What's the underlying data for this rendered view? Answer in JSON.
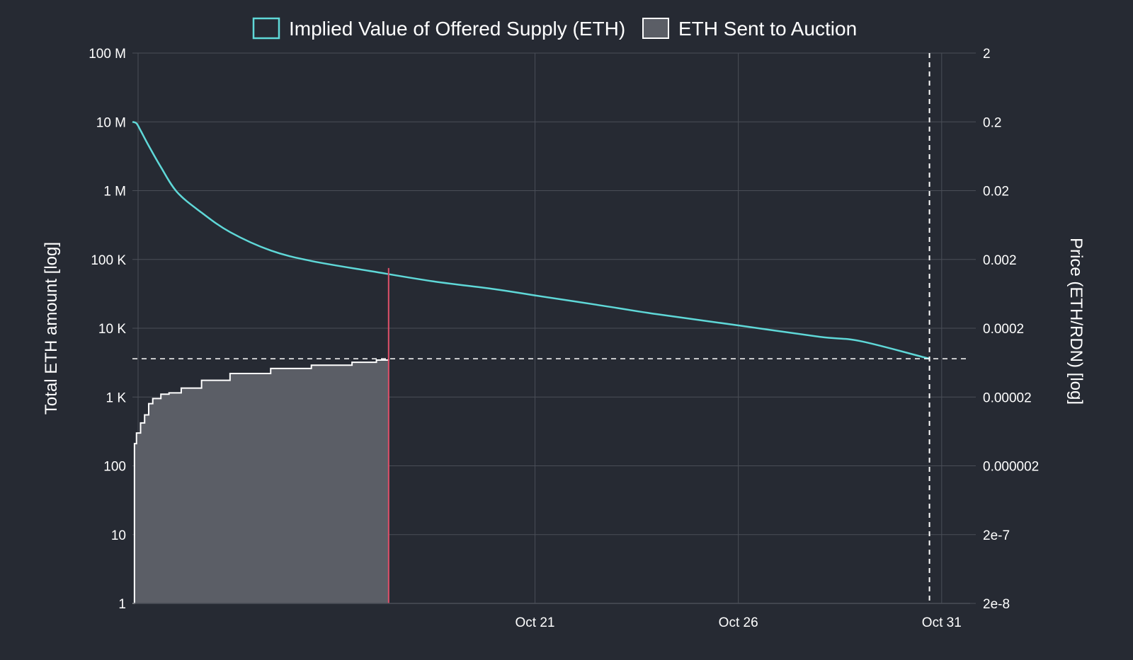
{
  "chart_data": {
    "type": "area",
    "legend": {
      "placement": "top-center",
      "entries": [
        {
          "label": "Implied Value of Offered Supply (ETH)",
          "swatch": "outline",
          "color": "#5fd8d8"
        },
        {
          "label": "ETH Sent to Auction",
          "swatch": "filled",
          "color": "#5b5e66"
        }
      ]
    },
    "y_left": {
      "label": "Total ETH amount [log]",
      "scale": "log",
      "range": [
        1,
        100000000
      ],
      "ticks": [
        {
          "value": 1,
          "label": "1"
        },
        {
          "value": 10,
          "label": "10"
        },
        {
          "value": 100,
          "label": "100"
        },
        {
          "value": 1000,
          "label": "1 K"
        },
        {
          "value": 10000,
          "label": "10 K"
        },
        {
          "value": 100000,
          "label": "100 K"
        },
        {
          "value": 1000000,
          "label": "1 M"
        },
        {
          "value": 10000000,
          "label": "10 M"
        },
        {
          "value": 100000000,
          "label": "100 M"
        }
      ]
    },
    "y_right": {
      "label": "Price (ETH/RDN) [log]",
      "scale": "log",
      "ticks": [
        "2e-8",
        "2e-7",
        "0.000002",
        "0.00002",
        "0.0002",
        "0.002",
        "0.02",
        "0.2",
        "2"
      ]
    },
    "x": {
      "scale": "time",
      "range_days": [
        11.1,
        31.7
      ],
      "ticks": [
        {
          "day": 21,
          "label": "Oct 21"
        },
        {
          "day": 26,
          "label": "Oct 26"
        },
        {
          "day": 31,
          "label": "Oct 31"
        }
      ]
    },
    "grid": true,
    "colors": {
      "background": "#262a33",
      "grid": "#4a4e57",
      "supply_line": "#5fd8d8",
      "auction_fill": "#5b5e66",
      "auction_line": "#ffffff",
      "marker_line": "#e0506a",
      "reference_lines": "#ffffff"
    },
    "series": [
      {
        "name": "Implied Value of Offered Supply (ETH)",
        "kind": "line",
        "x_days": [
          11.1,
          11.2,
          11.3,
          11.5,
          11.8,
          12.2,
          12.8,
          13.5,
          14.5,
          15.5,
          17.0,
          18.5,
          20.0,
          21.0,
          22.5,
          24.0,
          26.0,
          28.0,
          29.0,
          30.7
        ],
        "values": [
          10000000,
          9500000,
          7500000,
          4500000,
          2200000,
          950000,
          480000,
          250000,
          135000,
          95000,
          67000,
          48000,
          37000,
          30000,
          22000,
          16000,
          11000,
          7500,
          6500,
          3600
        ]
      },
      {
        "name": "ETH Sent to Auction",
        "kind": "area",
        "x_days": [
          11.1,
          11.15,
          11.2,
          11.3,
          11.4,
          11.5,
          11.6,
          11.8,
          12.0,
          12.3,
          12.8,
          13.5,
          14.5,
          15.5,
          16.5,
          17.1,
          17.4
        ],
        "values": [
          1,
          210,
          300,
          420,
          550,
          800,
          950,
          1100,
          1150,
          1350,
          1750,
          2200,
          2600,
          2900,
          3200,
          3450,
          3600
        ]
      }
    ],
    "annotations": [
      {
        "type": "vline",
        "x_day": 17.4,
        "from": 1,
        "to": 75000,
        "color": "#e0506a",
        "style": "solid"
      },
      {
        "type": "hline",
        "y": 3600,
        "style": "dashed"
      },
      {
        "type": "vline",
        "x_day": 30.7,
        "style": "dashed"
      }
    ]
  }
}
